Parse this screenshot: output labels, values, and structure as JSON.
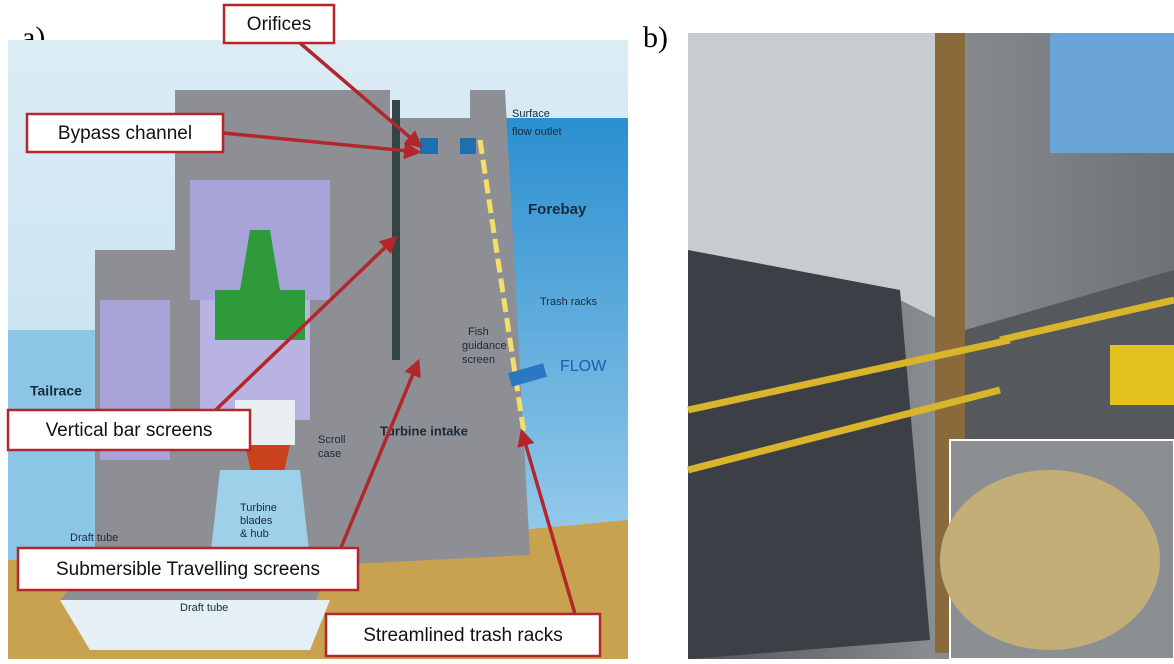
{
  "panels": [
    {
      "label": "a)",
      "callouts": [
        "Orifices",
        "Bypass channel",
        "Vertical bar screens",
        "Submersible Travelling screens",
        "Streamlined trash racks"
      ],
      "diagram_labels": {
        "surface_flow_outlet": [
          "Surface",
          "flow outlet"
        ],
        "forebay": "Forebay",
        "trash_racks": "Trash racks",
        "fish_guidance_screen": [
          "Fish",
          "guidance",
          "screen"
        ],
        "flow": "FLOW",
        "tailrace": "Tailrace",
        "turbine_intake": "Turbine intake",
        "scroll_case": [
          "Scroll",
          "case"
        ],
        "turbine_blades": [
          "Turbine",
          "blades",
          "& hub"
        ],
        "draft_tube_left": "Draft tube",
        "draft_tube_bottom": "Draft tube"
      }
    },
    {
      "label": "b)"
    }
  ]
}
